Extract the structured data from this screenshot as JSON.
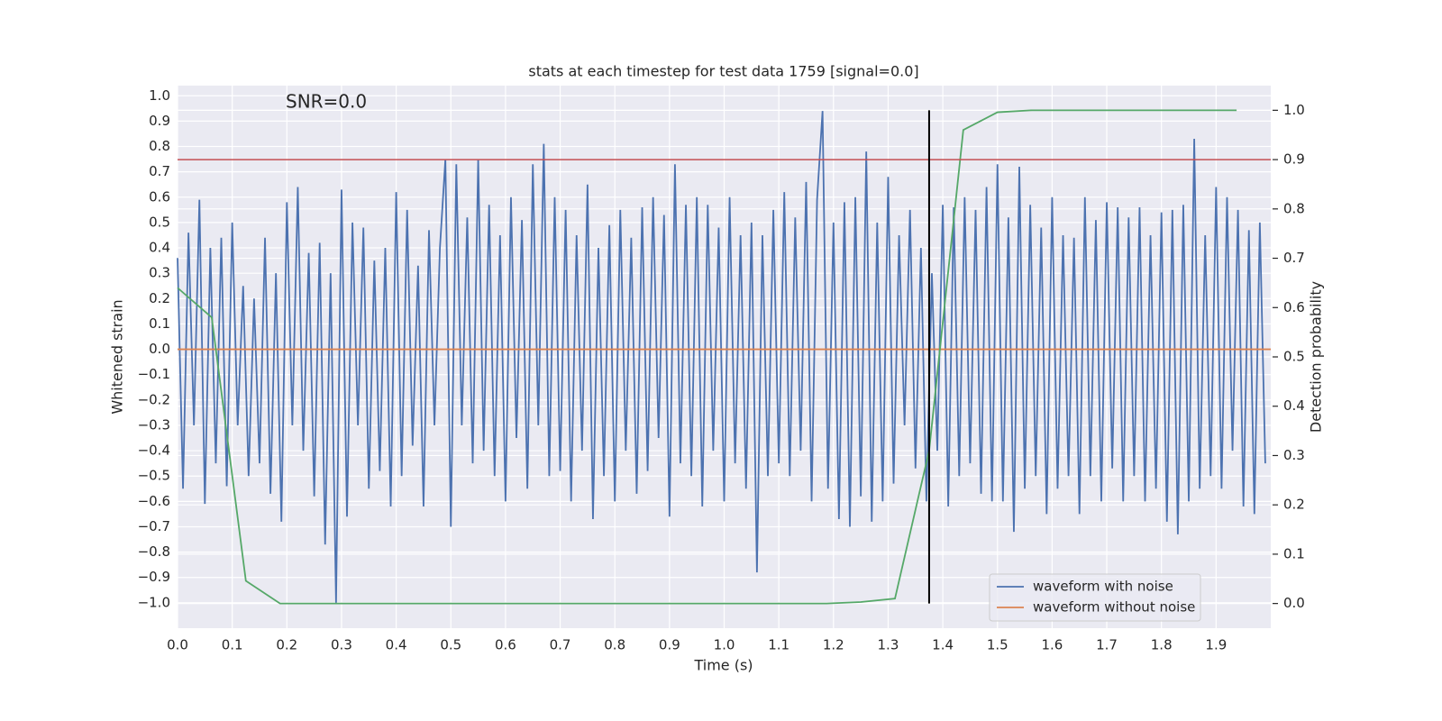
{
  "chart_data": {
    "type": "line",
    "title": "stats at each timestep for test data 1759 [signal=0.0]",
    "annotation": "SNR=0.0",
    "xlabel": "Time (s)",
    "ylabel": "Whitened strain",
    "y2label": "Detection probability",
    "xlim": [
      0,
      2.0
    ],
    "ylim": [
      -1.1,
      1.04
    ],
    "y2lim": [
      -0.05,
      1.05
    ],
    "grid": true,
    "legend": "lower right",
    "xticks": [
      {
        "value": 0,
        "label": "0.0"
      },
      0.1,
      0.2,
      0.3,
      0.4,
      0.5,
      0.6,
      0.7,
      0.8,
      0.9,
      {
        "value": 1,
        "label": "1.0"
      },
      1.1,
      1.2,
      1.3,
      1.4,
      1.5,
      1.6,
      1.7,
      1.8,
      1.9
    ],
    "yticks": [
      {
        "value": -1,
        "label": "−1.0"
      },
      {
        "value": -0.9,
        "label": "−0.9"
      },
      {
        "value": -0.8,
        "label": "−0.8"
      },
      {
        "value": -0.7,
        "label": "−0.7"
      },
      {
        "value": -0.6,
        "label": "−0.6"
      },
      {
        "value": -0.5,
        "label": "−0.5"
      },
      {
        "value": -0.4,
        "label": "−0.4"
      },
      {
        "value": -0.3,
        "label": "−0.3"
      },
      {
        "value": -0.2,
        "label": "−0.2"
      },
      {
        "value": -0.1,
        "label": "−0.1"
      },
      {
        "value": 0,
        "label": "0.0"
      },
      0.1,
      0.2,
      0.3,
      0.4,
      0.5,
      0.6,
      0.7,
      0.8,
      0.9,
      {
        "value": 1,
        "label": "1.0"
      }
    ],
    "y2ticks": [
      {
        "value": 0,
        "label": "0.0"
      },
      0.1,
      0.2,
      0.3,
      0.4,
      0.5,
      0.6,
      0.7,
      0.8,
      0.9,
      {
        "value": 1,
        "label": "1.0"
      }
    ],
    "vline_x": 1.375,
    "vline_color": "#000000",
    "hline_y2": 0.9,
    "hline_color": "#c44e52",
    "series": [
      {
        "name": "waveform with noise",
        "color": "#4c72b0",
        "x": [
          0,
          0.01,
          0.02,
          0.03,
          0.04,
          0.05,
          0.06,
          0.07,
          0.08,
          0.09,
          0.1,
          0.11,
          0.12,
          0.13,
          0.14,
          0.15,
          0.16,
          0.17,
          0.18,
          0.19,
          0.2,
          0.21,
          0.22,
          0.23,
          0.24,
          0.25,
          0.26,
          0.27,
          0.28,
          0.29,
          0.3,
          0.31,
          0.32,
          0.33,
          0.34,
          0.35,
          0.36,
          0.37,
          0.38,
          0.39,
          0.4,
          0.41,
          0.42,
          0.43,
          0.44,
          0.45,
          0.46,
          0.47,
          0.48,
          0.49,
          0.5,
          0.51,
          0.52,
          0.53,
          0.54,
          0.55,
          0.56,
          0.57,
          0.58,
          0.59,
          0.6,
          0.61,
          0.62,
          0.63,
          0.64,
          0.65,
          0.66,
          0.67,
          0.68,
          0.69,
          0.7,
          0.71,
          0.72,
          0.73,
          0.74,
          0.75,
          0.76,
          0.77,
          0.78,
          0.79,
          0.8,
          0.81,
          0.82,
          0.83,
          0.84,
          0.85,
          0.86,
          0.87,
          0.88,
          0.89,
          0.9,
          0.91,
          0.92,
          0.93,
          0.94,
          0.95,
          0.96,
          0.97,
          0.98,
          0.99,
          1,
          1.01,
          1.02,
          1.03,
          1.04,
          1.05,
          1.06,
          1.07,
          1.08,
          1.09,
          1.1,
          1.11,
          1.12,
          1.13,
          1.14,
          1.15,
          1.16,
          1.17,
          1.18,
          1.19,
          1.2,
          1.21,
          1.22,
          1.23,
          1.24,
          1.25,
          1.26,
          1.27,
          1.28,
          1.29,
          1.3,
          1.31,
          1.32,
          1.33,
          1.34,
          1.35,
          1.36,
          1.37,
          1.38,
          1.39,
          1.4,
          1.41,
          1.42,
          1.43,
          1.44,
          1.45,
          1.46,
          1.47,
          1.48,
          1.49,
          1.5,
          1.51,
          1.52,
          1.53,
          1.54,
          1.55,
          1.56,
          1.57,
          1.58,
          1.59,
          1.6,
          1.61,
          1.62,
          1.63,
          1.64,
          1.65,
          1.66,
          1.67,
          1.68,
          1.69,
          1.7,
          1.71,
          1.72,
          1.73,
          1.74,
          1.75,
          1.76,
          1.77,
          1.78,
          1.79,
          1.8,
          1.81,
          1.82,
          1.83,
          1.84,
          1.85,
          1.86,
          1.87,
          1.88,
          1.89,
          1.9,
          1.91,
          1.92,
          1.93,
          1.94,
          1.95,
          1.96,
          1.97,
          1.98,
          1.99
        ],
        "values": [
          0.36,
          -0.55,
          0.46,
          -0.3,
          0.59,
          -0.61,
          0.4,
          -0.45,
          0.44,
          -0.54,
          0.5,
          -0.3,
          0.25,
          -0.5,
          0.2,
          -0.45,
          0.44,
          -0.57,
          0.3,
          -0.68,
          0.58,
          -0.3,
          0.64,
          -0.4,
          0.38,
          -0.58,
          0.42,
          -0.77,
          0.3,
          -1.0,
          0.63,
          -0.66,
          0.5,
          -0.3,
          0.48,
          -0.55,
          0.35,
          -0.48,
          0.4,
          -0.62,
          0.62,
          -0.5,
          0.55,
          -0.38,
          0.33,
          -0.62,
          0.47,
          -0.3,
          0.4,
          0.75,
          -0.7,
          0.73,
          -0.3,
          0.52,
          -0.45,
          0.75,
          -0.4,
          0.57,
          -0.5,
          0.45,
          -0.6,
          0.6,
          -0.35,
          0.51,
          -0.55,
          0.73,
          -0.3,
          0.81,
          -0.5,
          0.6,
          -0.48,
          0.55,
          -0.6,
          0.45,
          -0.4,
          0.65,
          -0.67,
          0.4,
          -0.5,
          0.49,
          -0.6,
          0.55,
          -0.4,
          0.44,
          -0.57,
          0.56,
          -0.48,
          0.6,
          -0.35,
          0.53,
          -0.66,
          0.73,
          -0.45,
          0.57,
          -0.5,
          0.6,
          -0.62,
          0.57,
          -0.4,
          0.48,
          -0.6,
          0.6,
          -0.45,
          0.45,
          -0.55,
          0.5,
          -0.88,
          0.45,
          -0.5,
          0.55,
          -0.45,
          0.62,
          -0.5,
          0.52,
          -0.4,
          0.66,
          -0.6,
          0.59,
          0.94,
          -0.55,
          0.5,
          -0.67,
          0.58,
          -0.7,
          0.6,
          -0.58,
          0.78,
          -0.68,
          0.5,
          -0.6,
          0.68,
          -0.53,
          0.45,
          -0.3,
          0.55,
          -0.47,
          0.4,
          -0.6,
          0.3,
          -0.4,
          0.57,
          -0.62,
          0.56,
          -0.5,
          0.6,
          -0.45,
          0.55,
          -0.57,
          0.64,
          -0.6,
          0.73,
          -0.6,
          0.52,
          -0.72,
          0.72,
          -0.55,
          0.57,
          -0.5,
          0.48,
          -0.65,
          0.6,
          -0.55,
          0.45,
          -0.5,
          0.44,
          -0.65,
          0.6,
          -0.5,
          0.51,
          -0.6,
          0.58,
          -0.47,
          0.56,
          -0.6,
          0.52,
          -0.5,
          0.56,
          -0.6,
          0.45,
          -0.55,
          0.54,
          -0.68,
          0.55,
          -0.73,
          0.57,
          -0.6,
          0.83,
          -0.55,
          0.45,
          -0.5,
          0.64,
          -0.55,
          0.6,
          -0.4,
          0.55,
          -0.62,
          0.47,
          -0.65,
          0.5,
          -0.45
        ]
      },
      {
        "name": "waveform without noise",
        "color": "#dd8452",
        "x": [
          0,
          2.0
        ],
        "values": [
          0,
          0
        ]
      },
      {
        "color": "#55a868",
        "axis": "y2",
        "x": [
          0,
          0.0625,
          0.125,
          0.1875,
          0.25,
          0.3125,
          0.375,
          0.4375,
          0.5,
          0.5625,
          0.625,
          0.6875,
          0.75,
          0.8125,
          0.875,
          0.9375,
          1,
          1.0625,
          1.125,
          1.1875,
          1.25,
          1.3125,
          1.375,
          1.4375,
          1.5,
          1.5625,
          1.625,
          1.6875,
          1.75,
          1.8125,
          1.875,
          1.9375
        ],
        "values": [
          0.64,
          0.58,
          0.046,
          0,
          0,
          0,
          0,
          0,
          0,
          0,
          0,
          0,
          0,
          0,
          0,
          0,
          0,
          0,
          0,
          0,
          0.003,
          0.01,
          0.31,
          0.96,
          0.996,
          1,
          1,
          1,
          1,
          1,
          1,
          1
        ]
      }
    ]
  }
}
